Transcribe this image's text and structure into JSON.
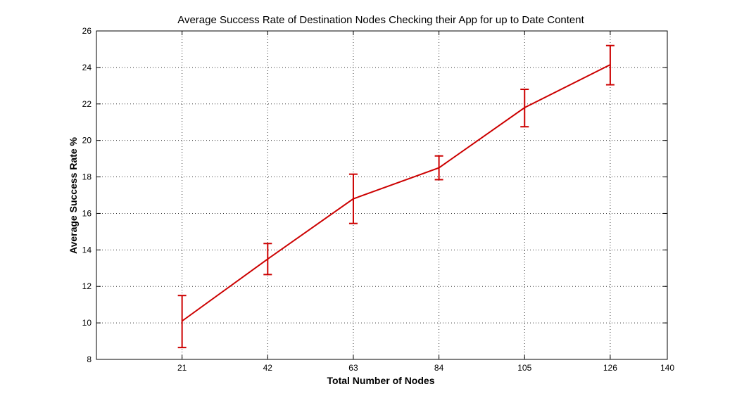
{
  "chart_data": {
    "type": "line",
    "title": "Average Success Rate of Destination Nodes Checking their App for up to Date Content",
    "xlabel": "Total Number of Nodes",
    "ylabel": "Average Success Rate %",
    "xlim": [
      0,
      140
    ],
    "ylim": [
      8,
      26
    ],
    "xticks": [
      21,
      42,
      63,
      84,
      105,
      126,
      140
    ],
    "yticks": [
      8,
      10,
      12,
      14,
      16,
      18,
      20,
      22,
      24,
      26
    ],
    "grid": true,
    "legend": "none",
    "series": [
      {
        "color": "#cc0000",
        "x": [
          21,
          42,
          63,
          84,
          105,
          126
        ],
        "y": [
          10.1,
          13.5,
          16.8,
          18.5,
          21.8,
          24.15
        ],
        "err_low": [
          8.65,
          12.65,
          15.45,
          17.85,
          20.75,
          23.05
        ],
        "err_high": [
          11.5,
          14.35,
          18.15,
          19.15,
          22.8,
          25.2
        ]
      }
    ]
  }
}
